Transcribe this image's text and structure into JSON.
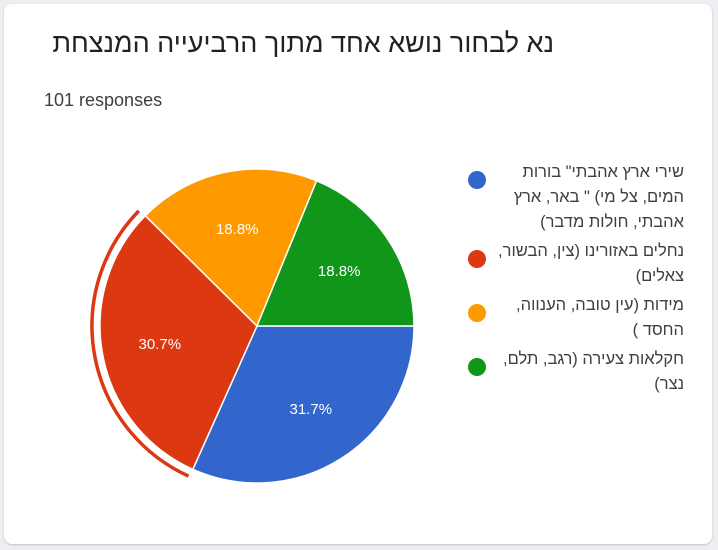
{
  "form": {
    "question_title": "נא לבחור נושא אחד מתוך הרביעייה המנצחת",
    "responses": "101 responses"
  },
  "chart_data": {
    "type": "pie",
    "title": "נא לבחור נושא אחד מתוך הרביעייה המנצחת",
    "legend_position": "right",
    "highlighted_slice": 1,
    "slices": [
      {
        "label": "שירי ארץ אהבתי\" בורות המים, צל מי) \" באר, ארץ אהבתי, חולות מדבר)",
        "value": 31.7,
        "label_text": "31.7%",
        "color": "#3366cc"
      },
      {
        "label": "נחלים באזורינו (צין, הבשור, צאלים)",
        "value": 30.7,
        "label_text": "30.7%",
        "color": "#dc3912"
      },
      {
        "label": "מידות (עין טובה, הענווה, החסד )",
        "value": 18.8,
        "label_text": "18.8%",
        "color": "#ff9900"
      },
      {
        "label": "חקלאות צעירה (רגב, תלם, נצר)",
        "value": 18.8,
        "label_text": "18.8%",
        "color": "#109618"
      }
    ]
  }
}
